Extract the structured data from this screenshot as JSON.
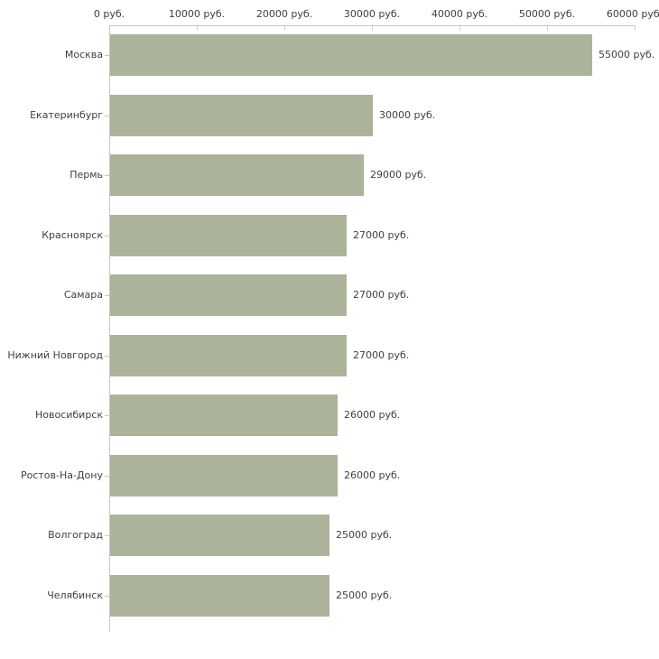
{
  "chart_data": {
    "type": "bar",
    "orientation": "horizontal",
    "title": "",
    "xlabel": "",
    "ylabel": "",
    "unit": "руб.",
    "categories": [
      "Москва",
      "Екатеринбург",
      "Пермь",
      "Красноярск",
      "Самара",
      "Нижний Новгород",
      "Новосибирск",
      "Ростов-На-Дону",
      "Волгоград",
      "Челябинск"
    ],
    "values": [
      55000,
      30000,
      29000,
      27000,
      27000,
      27000,
      26000,
      26000,
      25000,
      25000
    ],
    "value_labels": [
      "55000 руб.",
      "30000 руб.",
      "29000 руб.",
      "27000 руб.",
      "27000 руб.",
      "27000 руб.",
      "26000 руб.",
      "26000 руб.",
      "25000 руб.",
      "25000 руб."
    ],
    "x_ticks": {
      "values": [
        0,
        10000,
        20000,
        30000,
        40000,
        50000,
        60000
      ],
      "labels": [
        "0 руб.",
        "10000 руб.",
        "20000 руб.",
        "30000 руб.",
        "40000 руб.",
        "50000 руб.",
        "60000 руб."
      ]
    },
    "xlim": [
      0,
      60000
    ],
    "grid": false,
    "legend": "none",
    "colors": {
      "bar": "#abb49a",
      "axis": "#c6c6c6",
      "tick": "#cdd1ba",
      "text": "#3f3f3f",
      "background": "#ffffff"
    }
  }
}
